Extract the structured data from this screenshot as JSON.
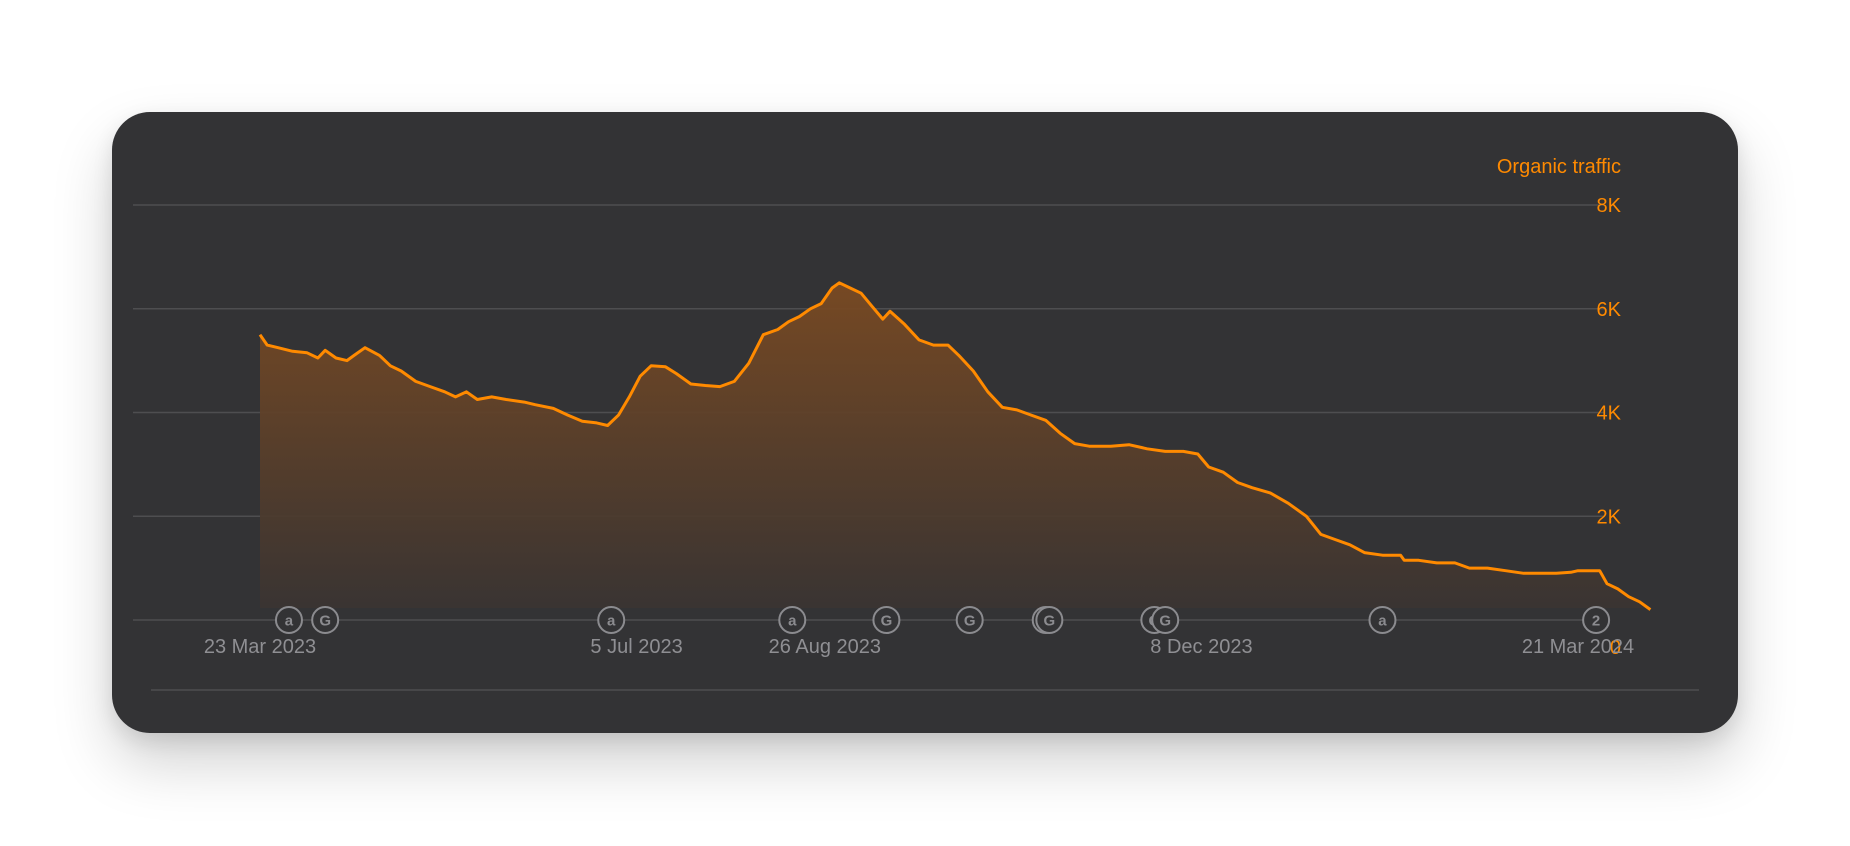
{
  "colors": {
    "card_bg": "#333335",
    "line": "#FF8A00",
    "grid": "#4e4e50",
    "axis_text": "#8f8f93",
    "marker": "#8b8b8f"
  },
  "chart_data": {
    "type": "area",
    "series": [
      {
        "name": "Organic traffic",
        "points": [
          [
            "2023-03-23",
            5500
          ],
          [
            "2023-03-25",
            5300
          ],
          [
            "2023-03-28",
            5250
          ],
          [
            "2023-04-01",
            5180
          ],
          [
            "2023-04-05",
            5150
          ],
          [
            "2023-04-08",
            5050
          ],
          [
            "2023-04-10",
            5200
          ],
          [
            "2023-04-13",
            5050
          ],
          [
            "2023-04-16",
            5000
          ],
          [
            "2023-04-18",
            5100
          ],
          [
            "2023-04-21",
            5250
          ],
          [
            "2023-04-25",
            5100
          ],
          [
            "2023-04-28",
            4900
          ],
          [
            "2023-05-01",
            4800
          ],
          [
            "2023-05-05",
            4600
          ],
          [
            "2023-05-09",
            4500
          ],
          [
            "2023-05-13",
            4400
          ],
          [
            "2023-05-16",
            4300
          ],
          [
            "2023-05-19",
            4400
          ],
          [
            "2023-05-22",
            4250
          ],
          [
            "2023-05-26",
            4300
          ],
          [
            "2023-05-30",
            4250
          ],
          [
            "2023-06-04",
            4200
          ],
          [
            "2023-06-07",
            4150
          ],
          [
            "2023-06-12",
            4080
          ],
          [
            "2023-06-16",
            3950
          ],
          [
            "2023-06-20",
            3830
          ],
          [
            "2023-06-24",
            3800
          ],
          [
            "2023-06-27",
            3750
          ],
          [
            "2023-06-30",
            3950
          ],
          [
            "2023-07-03",
            4300
          ],
          [
            "2023-07-06",
            4700
          ],
          [
            "2023-07-09",
            4900
          ],
          [
            "2023-07-13",
            4880
          ],
          [
            "2023-07-16",
            4750
          ],
          [
            "2023-07-20",
            4550
          ],
          [
            "2023-07-24",
            4520
          ],
          [
            "2023-07-28",
            4500
          ],
          [
            "2023-08-01",
            4600
          ],
          [
            "2023-08-05",
            4950
          ],
          [
            "2023-08-09",
            5500
          ],
          [
            "2023-08-13",
            5600
          ],
          [
            "2023-08-16",
            5750
          ],
          [
            "2023-08-19",
            5850
          ],
          [
            "2023-08-22",
            6000
          ],
          [
            "2023-08-25",
            6100
          ],
          [
            "2023-08-28",
            6400
          ],
          [
            "2023-08-30",
            6500
          ],
          [
            "2023-09-02",
            6400
          ],
          [
            "2023-09-05",
            6300
          ],
          [
            "2023-09-08",
            6050
          ],
          [
            "2023-09-11",
            5800
          ],
          [
            "2023-09-13",
            5950
          ],
          [
            "2023-09-17",
            5700
          ],
          [
            "2023-09-21",
            5400
          ],
          [
            "2023-09-25",
            5300
          ],
          [
            "2023-09-29",
            5300
          ],
          [
            "2023-10-02",
            5100
          ],
          [
            "2023-10-06",
            4800
          ],
          [
            "2023-10-10",
            4400
          ],
          [
            "2023-10-14",
            4100
          ],
          [
            "2023-10-18",
            4050
          ],
          [
            "2023-10-22",
            3950
          ],
          [
            "2023-10-26",
            3850
          ],
          [
            "2023-10-30",
            3600
          ],
          [
            "2023-11-03",
            3400
          ],
          [
            "2023-11-07",
            3350
          ],
          [
            "2023-11-13",
            3350
          ],
          [
            "2023-11-18",
            3380
          ],
          [
            "2023-11-23",
            3300
          ],
          [
            "2023-11-28",
            3250
          ],
          [
            "2023-12-03",
            3250
          ],
          [
            "2023-12-07",
            3200
          ],
          [
            "2023-12-10",
            2950
          ],
          [
            "2023-12-14",
            2850
          ],
          [
            "2023-12-18",
            2650
          ],
          [
            "2023-12-22",
            2550
          ],
          [
            "2023-12-27",
            2450
          ],
          [
            "2024-01-01",
            2250
          ],
          [
            "2024-01-06",
            2000
          ],
          [
            "2024-01-10",
            1650
          ],
          [
            "2024-01-14",
            1550
          ],
          [
            "2024-01-18",
            1450
          ],
          [
            "2024-01-22",
            1300
          ],
          [
            "2024-01-27",
            1250
          ],
          [
            "2024-02-01",
            1250
          ],
          [
            "2024-02-02",
            1150
          ],
          [
            "2024-02-06",
            1150
          ],
          [
            "2024-02-11",
            1100
          ],
          [
            "2024-02-16",
            1100
          ],
          [
            "2024-02-20",
            1000
          ],
          [
            "2024-02-25",
            1000
          ],
          [
            "2024-03-01",
            950
          ],
          [
            "2024-03-06",
            900
          ],
          [
            "2024-03-11",
            900
          ],
          [
            "2024-03-15",
            900
          ],
          [
            "2024-03-19",
            920
          ],
          [
            "2024-03-21",
            950
          ],
          [
            "2024-03-24",
            950
          ],
          [
            "2024-03-27",
            950
          ],
          [
            "2024-03-29",
            700
          ],
          [
            "2024-04-01",
            600
          ],
          [
            "2024-04-04",
            450
          ],
          [
            "2024-04-07",
            350
          ],
          [
            "2024-04-10",
            200
          ]
        ]
      }
    ],
    "x_ticks": [
      "23 Mar 2023",
      "5 Jul 2023",
      "26 Aug 2023",
      "8 Dec 2023",
      "21 Mar 2024"
    ],
    "x_tick_dates": [
      "2023-03-23",
      "2023-07-05",
      "2023-08-26",
      "2023-12-08",
      "2024-03-21"
    ],
    "y_ticks": [
      "0",
      "2K",
      "4K",
      "6K",
      "8K"
    ],
    "y_tick_values": [
      0,
      2000,
      4000,
      6000,
      8000
    ],
    "ylim": [
      0,
      8000
    ],
    "y_axis_side": "right",
    "grid": true,
    "fill": "gradient",
    "annotation_markers": [
      {
        "date": "2023-03-31",
        "label": "a"
      },
      {
        "date": "2023-04-10",
        "label": "G"
      },
      {
        "date": "2023-06-28",
        "label": "a"
      },
      {
        "date": "2023-08-17",
        "label": "a"
      },
      {
        "date": "2023-09-12",
        "label": "G"
      },
      {
        "date": "2023-10-05",
        "label": "G"
      },
      {
        "date": "2023-10-26",
        "label": "G"
      },
      {
        "date": "2023-10-27",
        "label": "G"
      },
      {
        "date": "2023-11-25",
        "label": "G"
      },
      {
        "date": "2023-11-28",
        "label": "G"
      },
      {
        "date": "2024-01-27",
        "label": "a"
      },
      {
        "date": "2024-03-26",
        "label": "2"
      }
    ]
  }
}
